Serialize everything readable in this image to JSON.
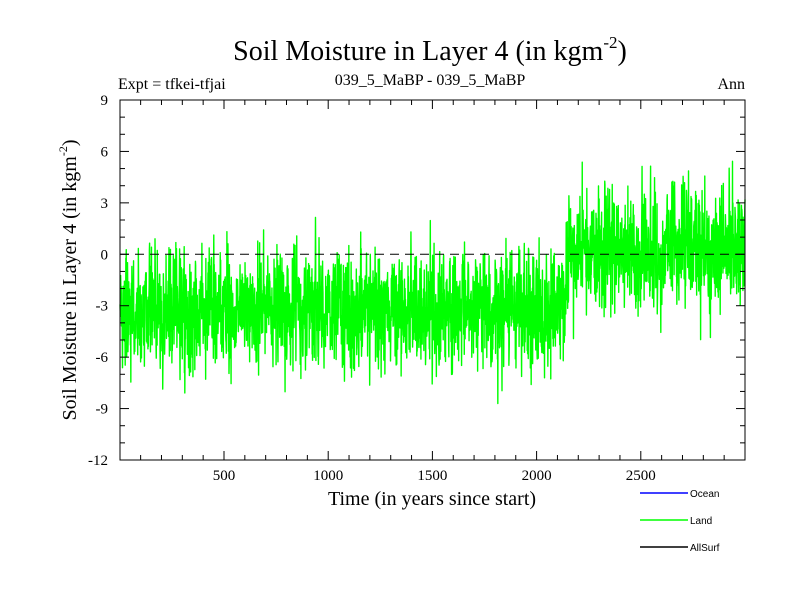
{
  "chart_data": {
    "type": "line",
    "title": "Soil Moisture in Layer 4 (in kgm",
    "title_superscript": "-2",
    "title_suffix": ")",
    "subtitle_left": "Expt = tfkei-tfjai",
    "subtitle_center": "039_5_MaBP - 039_5_MaBP",
    "subtitle_right": "Ann",
    "xlabel": "Time (in years since start)",
    "ylabel": "Soil Moisture in Layer 4 (in kgm",
    "ylabel_superscript": "-2",
    "ylabel_suffix": ")",
    "xlim": [
      1,
      3000
    ],
    "ylim": [
      -12,
      9
    ],
    "x_ticks": [
      500,
      1000,
      1500,
      2000,
      2500
    ],
    "y_ticks": [
      9,
      6,
      3,
      0,
      -3,
      -6,
      -9,
      -12
    ],
    "zero_line": true,
    "grid": false,
    "legend_position": "bottom-right",
    "series": [
      {
        "name": "Ocean",
        "color": "#0000ff",
        "values": []
      },
      {
        "name": "Land",
        "color": "#00ff00",
        "n_points": 3000,
        "segments": [
          {
            "x_start": 1,
            "x_end": 2140,
            "mean": -3.2,
            "range": [
              -9.1,
              2.9
            ]
          },
          {
            "x_start": 2140,
            "x_end": 3000,
            "mean": 0.3,
            "range": [
              -6.0,
              6.1
            ]
          }
        ]
      },
      {
        "name": "AllSurf",
        "color": "#000000",
        "values": []
      }
    ]
  }
}
